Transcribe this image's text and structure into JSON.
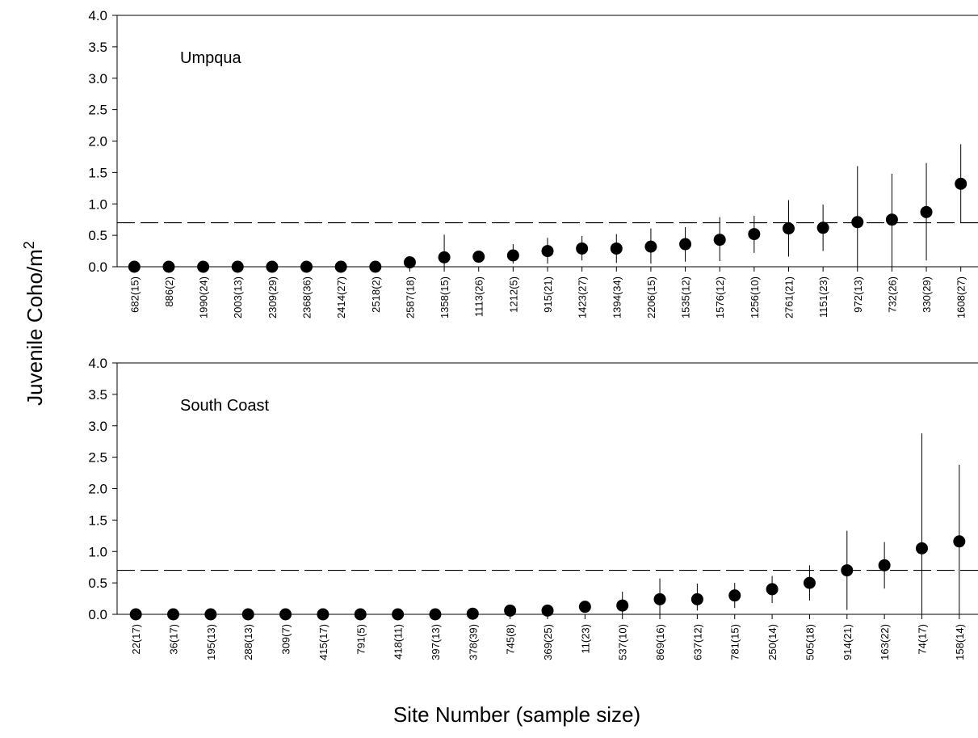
{
  "chart_data": {
    "type": "scatter",
    "ylabel": "Juvenile Coho/m",
    "ylabel_superscript": "2",
    "xlabel": "Site Number (sample size)",
    "ylim": [
      0,
      4
    ],
    "yticks": [
      "0.0",
      "0.5",
      "1.0",
      "1.5",
      "2.0",
      "2.5",
      "3.0",
      "3.5",
      "4.0"
    ],
    "panels": [
      {
        "title": "Umpqua",
        "threshold": 0.7,
        "categories": [
          "682(15)",
          "886(2)",
          "1990(24)",
          "2003(13)",
          "2309(29)",
          "2368(36)",
          "2414(27)",
          "2518(2)",
          "2587(18)",
          "1358(15)",
          "1113(26)",
          "1212(5)",
          "915(21)",
          "1423(27)",
          "1394(34)",
          "2206(15)",
          "1535(12)",
          "1576(12)",
          "1256(10)",
          "2761(21)",
          "1151(23)",
          "972(13)",
          "732(26)",
          "330(29)",
          "1608(27)"
        ],
        "values": [
          0,
          0,
          0,
          0,
          0,
          0,
          0,
          0,
          0.07,
          0.15,
          0.16,
          0.18,
          0.25,
          0.29,
          0.29,
          0.32,
          0.36,
          0.43,
          0.52,
          0.61,
          0.62,
          0.71,
          0.75,
          0.87,
          1.32
        ],
        "err_low": [
          0,
          0,
          0,
          0,
          0,
          0,
          0,
          0,
          0.02,
          0.0,
          0.08,
          0.05,
          0.05,
          0.1,
          0.06,
          0.05,
          0.08,
          0.09,
          0.22,
          0.16,
          0.25,
          0.0,
          0.0,
          0.1,
          0.7
        ],
        "err_high": [
          0,
          0,
          0,
          0,
          0,
          0,
          0,
          0,
          0.12,
          0.51,
          0.2,
          0.36,
          0.46,
          0.49,
          0.52,
          0.61,
          0.63,
          0.79,
          0.81,
          1.06,
          0.99,
          1.6,
          1.48,
          1.65,
          1.95
        ]
      },
      {
        "title": "South Coast",
        "threshold": 0.7,
        "categories": [
          "22(17)",
          "36(17)",
          "195(13)",
          "288(13)",
          "309(7)",
          "415(17)",
          "791(5)",
          "418(11)",
          "397(13)",
          "378(39)",
          "745(8)",
          "369(25)",
          "11(23)",
          "537(10)",
          "869(16)",
          "637(12)",
          "781(15)",
          "250(14)",
          "505(18)",
          "914(21)",
          "163(22)",
          "74(17)",
          "158(14)"
        ],
        "values": [
          0,
          0,
          0,
          0,
          0,
          0,
          0,
          0,
          0,
          0.01,
          0.06,
          0.06,
          0.12,
          0.14,
          0.24,
          0.24,
          0.3,
          0.4,
          0.5,
          0.7,
          0.78,
          1.05,
          1.16
        ],
        "err_low": [
          0,
          0,
          0,
          0,
          0,
          0,
          0,
          0,
          0,
          0,
          0.02,
          0.02,
          0.05,
          0.0,
          0.0,
          0.06,
          0.1,
          0.18,
          0.22,
          0.07,
          0.41,
          0.0,
          0.0
        ],
        "err_high": [
          0,
          0,
          0,
          0,
          0,
          0,
          0,
          0,
          0,
          0.02,
          0.1,
          0.1,
          0.19,
          0.36,
          0.57,
          0.49,
          0.5,
          0.61,
          0.78,
          1.33,
          1.15,
          2.88,
          2.38
        ]
      }
    ]
  }
}
